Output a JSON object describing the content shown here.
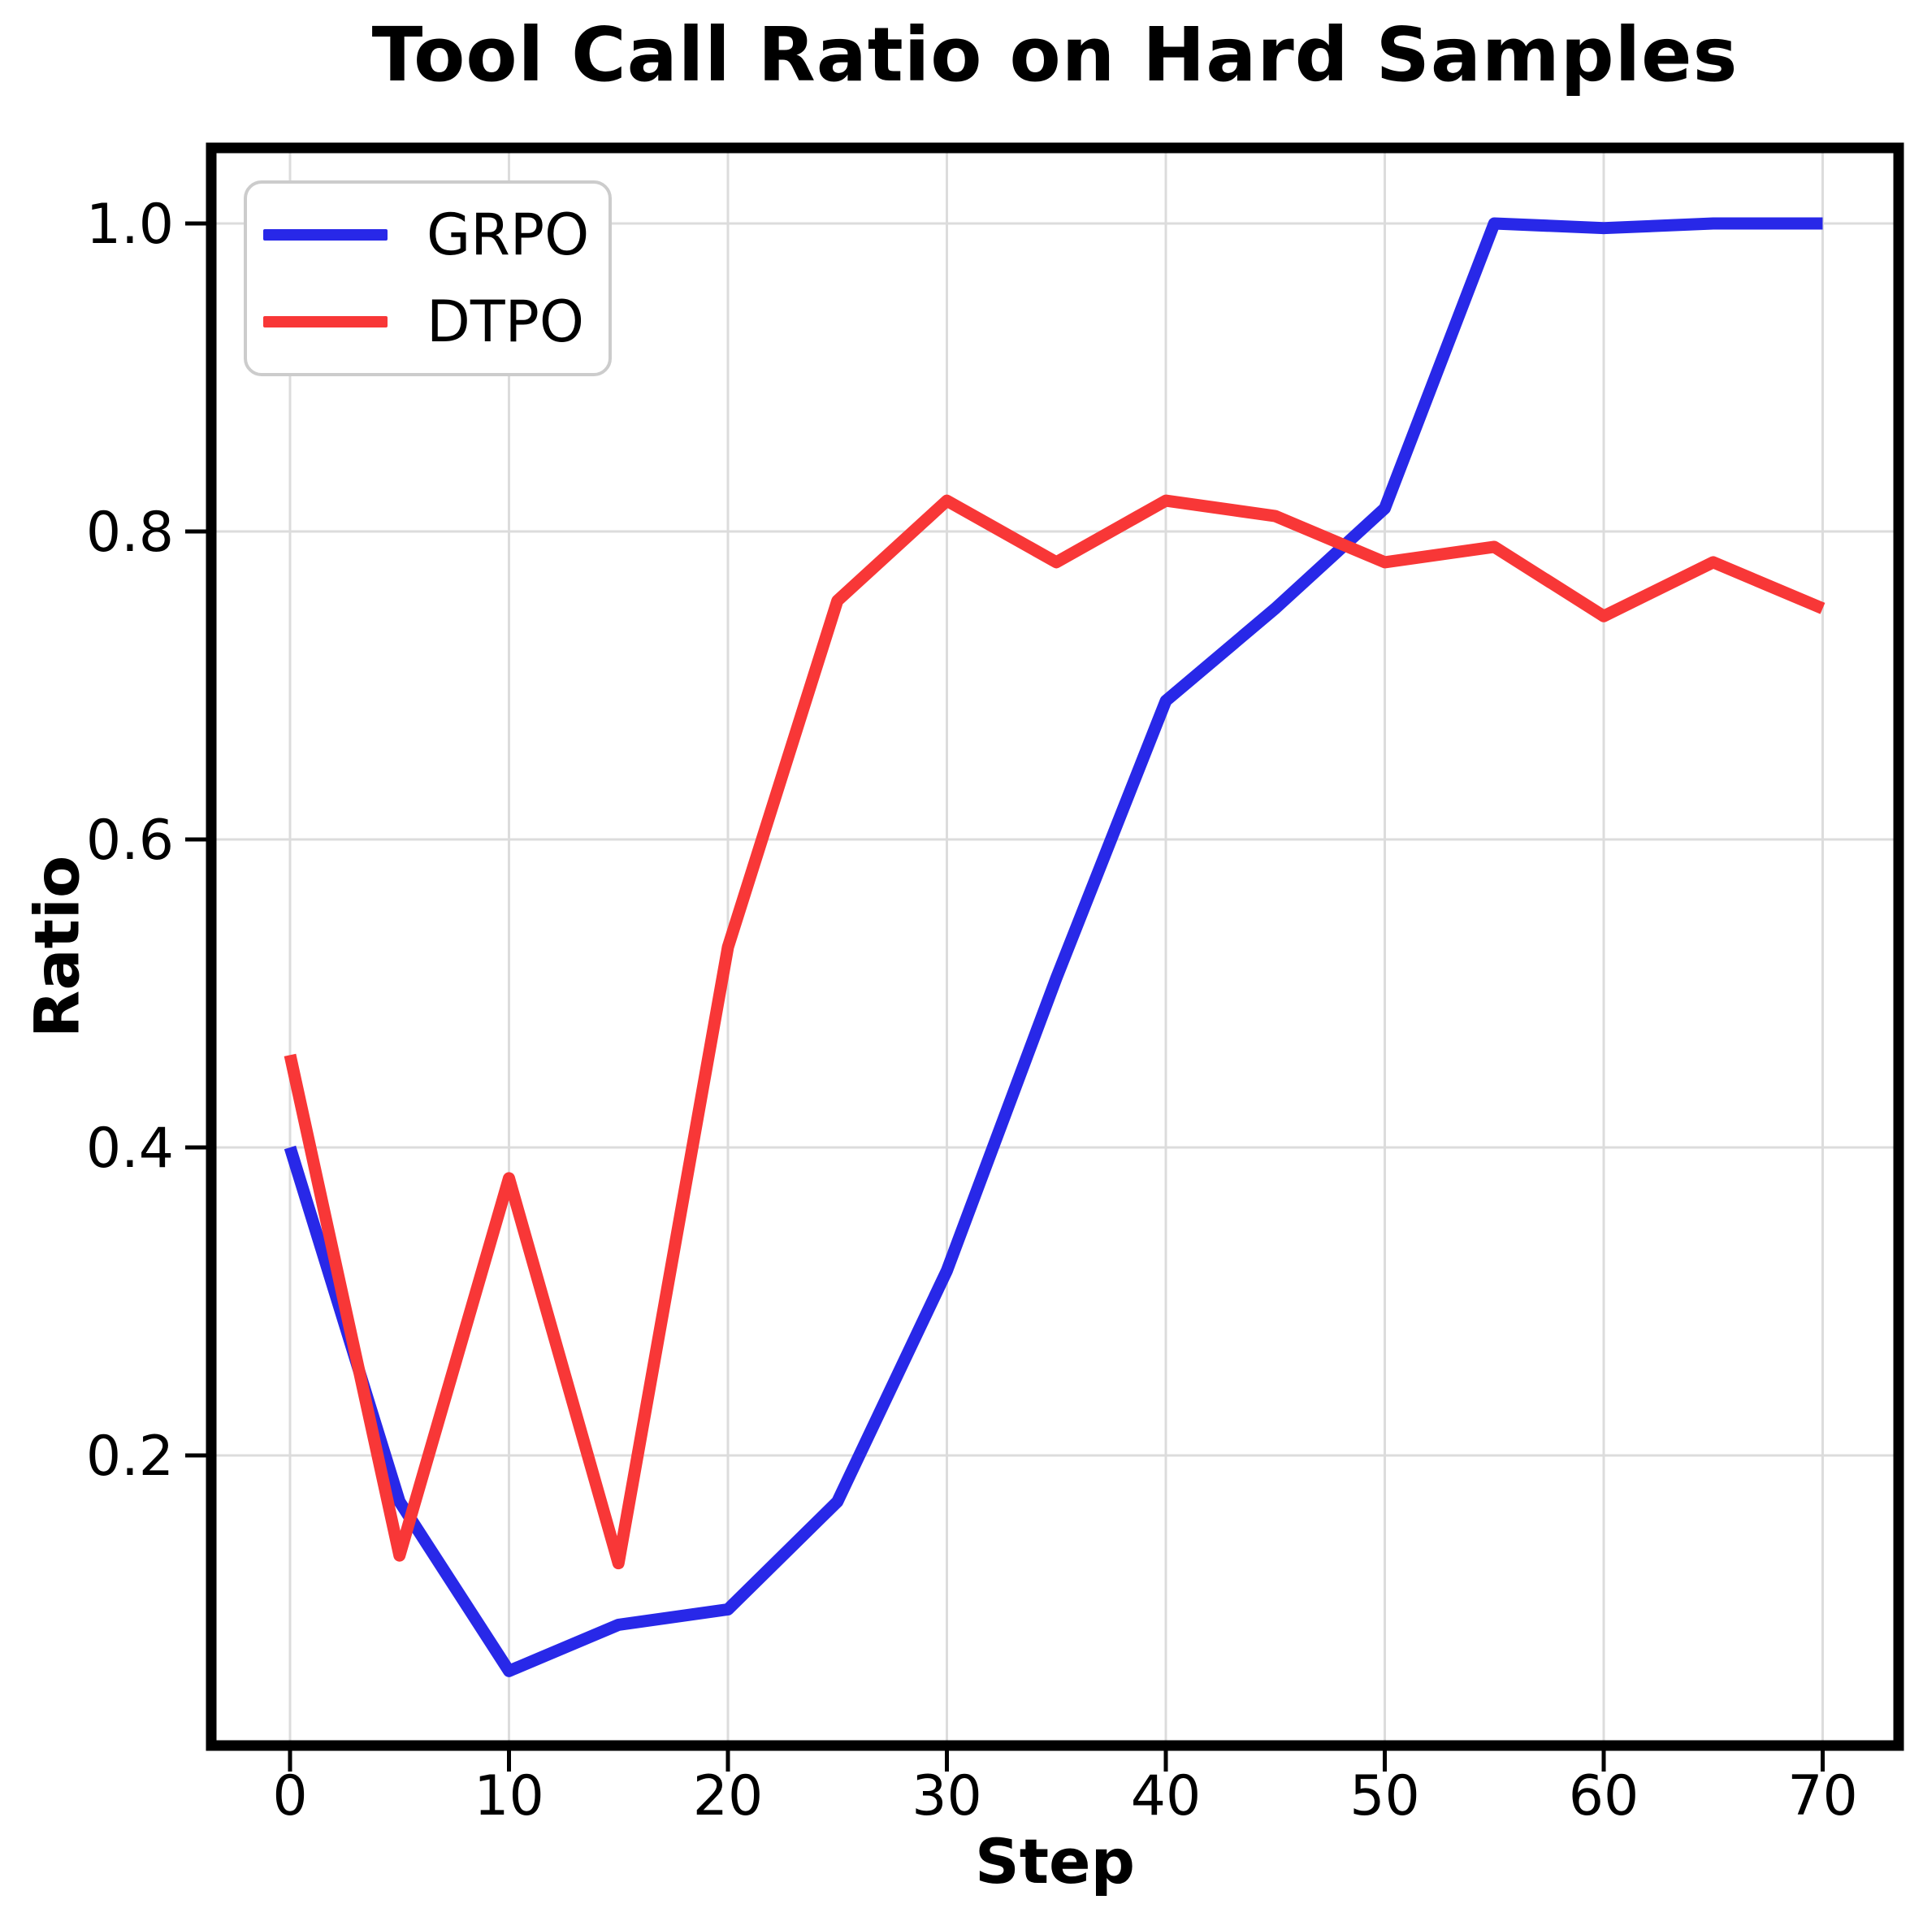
{
  "chart_data": {
    "type": "line",
    "title": "Tool Call Ratio on Hard Samples",
    "xlabel": "Step",
    "ylabel": "Ratio",
    "x": [
      0,
      5,
      10,
      15,
      20,
      25,
      30,
      35,
      40,
      45,
      50,
      55,
      60,
      65,
      70
    ],
    "series": [
      {
        "name": "GRPO",
        "color": "#2828e8",
        "values": [
          0.4,
          0.17,
          0.06,
          0.09,
          0.1,
          0.17,
          0.32,
          0.51,
          0.69,
          0.75,
          0.815,
          1.0,
          0.997,
          1.0,
          1.0
        ]
      },
      {
        "name": "DTPO",
        "color": "#f83737",
        "values": [
          0.46,
          0.135,
          0.38,
          0.13,
          0.53,
          0.755,
          0.82,
          0.78,
          0.82,
          0.81,
          0.78,
          0.79,
          0.745,
          0.78,
          0.75
        ]
      }
    ],
    "xticks": [
      0,
      10,
      20,
      30,
      40,
      50,
      60,
      70
    ],
    "yticks": [
      0.2,
      0.4,
      0.6,
      0.8,
      1.0
    ],
    "xlim": [
      -3.5,
      73.5
    ],
    "ylim": [
      0.012,
      1.048
    ],
    "grid": true,
    "grid_color": "#dcdcdc",
    "axis_color": "#000000",
    "legend_position": "upper left",
    "line_width": 15
  }
}
